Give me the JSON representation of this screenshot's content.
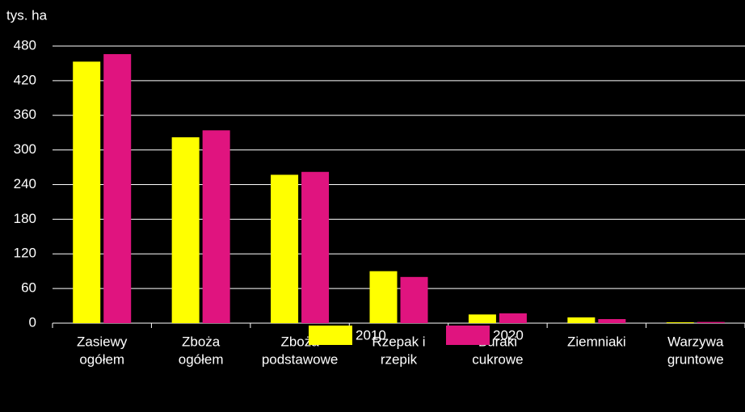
{
  "chart_data": {
    "type": "bar",
    "y_label": "tys. ha",
    "categories": [
      [
        "Zasiewy",
        "ogółem"
      ],
      [
        "Zboża",
        "ogółem"
      ],
      [
        "Zboża",
        "podstawowe"
      ],
      [
        "Rzepak i",
        "rzepik"
      ],
      [
        "Buraki",
        "cukrowe"
      ],
      [
        "Ziemniaki"
      ],
      [
        "Warzywa",
        "gruntowe"
      ]
    ],
    "series": [
      {
        "name": "2010",
        "color": "#ffff00",
        "values": [
          453,
          322,
          257,
          90,
          15,
          10,
          1.5
        ]
      },
      {
        "name": "2020",
        "color": "#e0147f",
        "values": [
          466,
          334,
          262,
          80,
          17,
          7,
          2
        ]
      }
    ],
    "ylim": [
      0,
      480
    ],
    "yticks": [
      0,
      60,
      120,
      180,
      240,
      300,
      360,
      420,
      480
    ],
    "grid": true,
    "legend": "bottom"
  }
}
